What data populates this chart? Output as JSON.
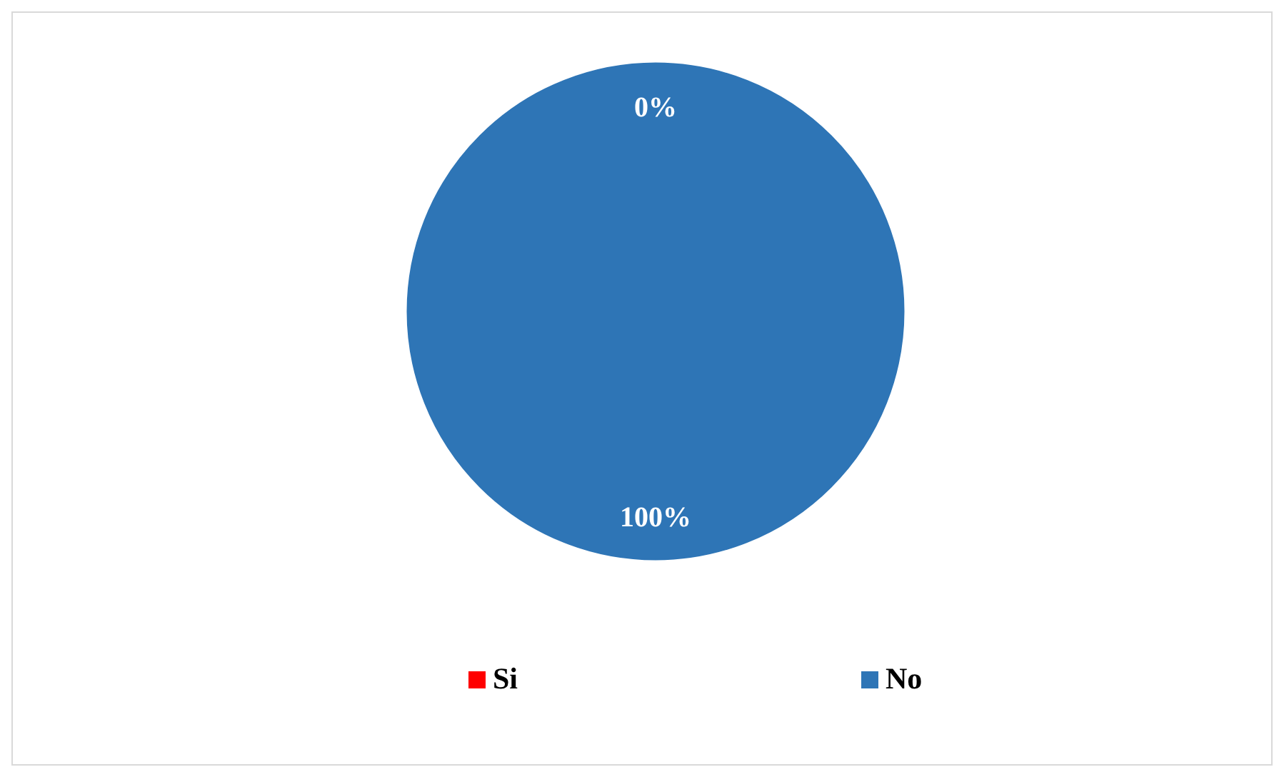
{
  "chart_data": {
    "type": "pie",
    "categories": [
      "Si",
      "No"
    ],
    "values": [
      0,
      100
    ],
    "colors": [
      "#ff0000",
      "#2e75b6"
    ],
    "value_labels": [
      "0%",
      "100%"
    ],
    "legend": "bottom"
  }
}
